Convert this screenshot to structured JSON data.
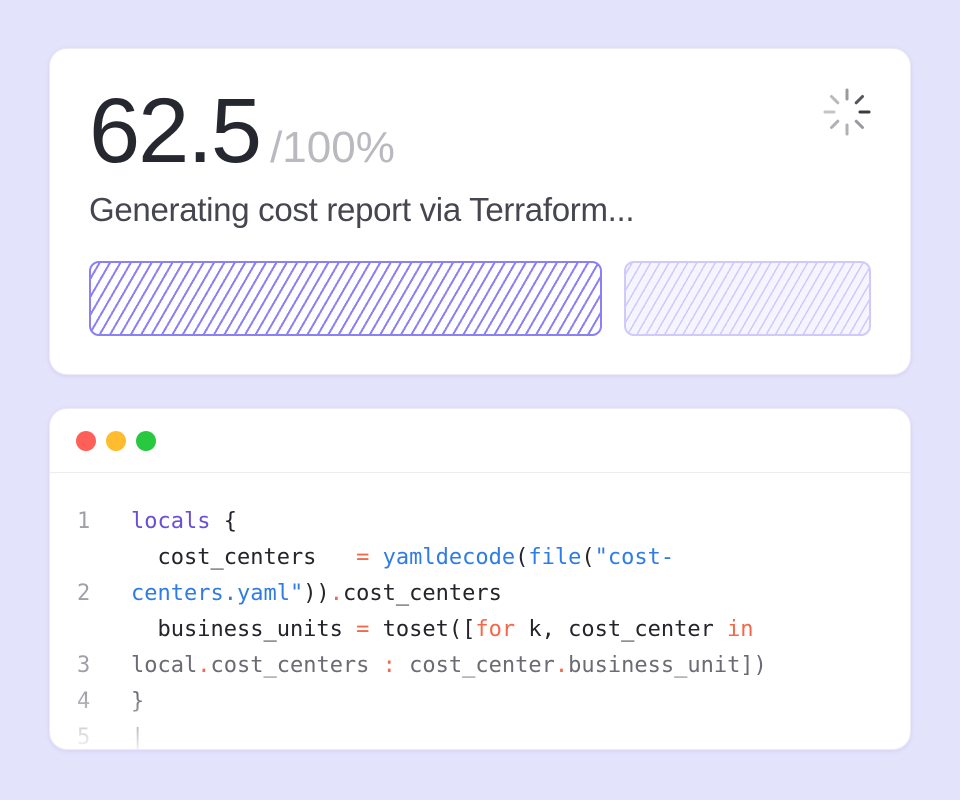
{
  "progress": {
    "value": "62.5",
    "total": "/100%",
    "percent": 62.5,
    "status": "Generating cost report via Terraform...",
    "spinner_icon": "loading-spinner-icon",
    "colors": {
      "fill": "#8b80f5",
      "track": "#cfcafb"
    }
  },
  "editor": {
    "window_controls": [
      "close",
      "minimize",
      "maximize"
    ],
    "colors": {
      "close": "#fe5f57",
      "minimize": "#febc2e",
      "maximize": "#28c840"
    },
    "line_numbers": [
      "1",
      "2",
      "3",
      "4",
      "5"
    ],
    "code": {
      "l1_kw": "locals",
      "l1_rest": " {",
      "l2a_name": "  cost_centers   ",
      "l2a_eq": "=",
      "l2a_fn1": " yamldecode",
      "l2a_p1": "(",
      "l2a_fn2": "file",
      "l2a_p2": "(",
      "l2a_str": "\"cost-",
      "l2b_str": "centers.yaml\"",
      "l2b_p": "))",
      "l2b_dot": ".",
      "l2b_rest": "cost_centers",
      "l3a_name": "  business_units ",
      "l3a_eq": "=",
      "l3a_rest": " toset([",
      "l3a_for": "for",
      "l3a_mid": " k, cost_center ",
      "l3a_in": "in",
      "l3b_a": "local",
      "l3b_dot1": ".",
      "l3b_b": "cost_centers ",
      "l3b_colon": ":",
      "l3b_c": " cost_center",
      "l3b_dot2": ".",
      "l3b_d": "business_unit])",
      "l4": "}",
      "l5": "|"
    }
  }
}
